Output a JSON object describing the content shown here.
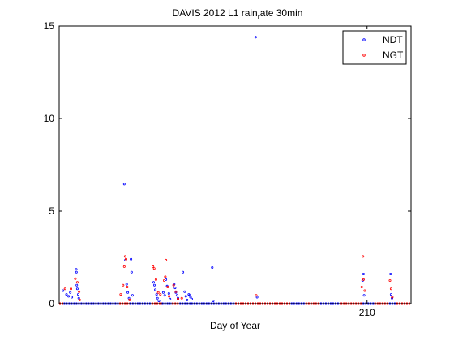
{
  "chart_data": {
    "type": "scatter",
    "title_main": "DAVIS 2012 L1 rain",
    "title_sub": "r",
    "title_rest": "ate 30min",
    "xlabel": "Day of Year",
    "ylabel": "",
    "xlim": [
      199.5,
      211.5
    ],
    "ylim": [
      0,
      15
    ],
    "xticks": [
      210
    ],
    "xtick_labels": [
      "210"
    ],
    "yticks": [
      0,
      5,
      10,
      15
    ],
    "ytick_labels": [
      "0",
      "5",
      "10",
      "15"
    ],
    "grid": false,
    "legend_position": "top-right",
    "series": [
      {
        "name": "NDT",
        "color": "#0000ff",
        "points": [
          [
            199.63,
            0.7
          ],
          [
            199.75,
            0.5
          ],
          [
            199.82,
            0.4
          ],
          [
            199.88,
            0.6
          ],
          [
            199.93,
            0.35
          ],
          [
            200.08,
            1.85
          ],
          [
            200.09,
            1.7
          ],
          [
            200.1,
            1.0
          ],
          [
            200.12,
            0.8
          ],
          [
            200.15,
            0.5
          ],
          [
            200.17,
            0.3
          ],
          [
            201.72,
            6.45
          ],
          [
            201.76,
            2.35
          ],
          [
            201.8,
            1.05
          ],
          [
            201.84,
            0.6
          ],
          [
            201.88,
            0.3
          ],
          [
            201.95,
            2.4
          ],
          [
            201.97,
            1.7
          ],
          [
            202.0,
            0.45
          ],
          [
            202.72,
            1.15
          ],
          [
            202.75,
            1.0
          ],
          [
            202.78,
            0.75
          ],
          [
            202.82,
            0.5
          ],
          [
            202.85,
            0.3
          ],
          [
            202.9,
            0.15
          ],
          [
            203.05,
            0.6
          ],
          [
            203.1,
            0.45
          ],
          [
            203.14,
            1.3
          ],
          [
            203.18,
            0.95
          ],
          [
            203.24,
            0.55
          ],
          [
            203.28,
            0.25
          ],
          [
            203.42,
            1.05
          ],
          [
            203.45,
            0.85
          ],
          [
            203.48,
            0.6
          ],
          [
            203.52,
            0.45
          ],
          [
            203.55,
            0.3
          ],
          [
            203.72,
            1.7
          ],
          [
            203.78,
            0.65
          ],
          [
            203.82,
            0.4
          ],
          [
            203.86,
            0.2
          ],
          [
            203.92,
            0.5
          ],
          [
            203.95,
            0.45
          ],
          [
            203.98,
            0.35
          ],
          [
            204.02,
            0.25
          ],
          [
            204.72,
            1.95
          ],
          [
            204.75,
            0.15
          ],
          [
            206.2,
            14.4
          ],
          [
            206.25,
            0.35
          ],
          [
            209.85,
            1.25
          ],
          [
            209.88,
            1.6
          ],
          [
            209.9,
            0.45
          ],
          [
            210.8,
            1.6
          ],
          [
            210.82,
            0.5
          ],
          [
            210.85,
            0.3
          ]
        ]
      },
      {
        "name": "NGT",
        "color": "#ff0000",
        "points": [
          [
            199.7,
            0.8
          ],
          [
            199.9,
            0.8
          ],
          [
            200.05,
            1.35
          ],
          [
            200.12,
            1.15
          ],
          [
            200.18,
            0.65
          ],
          [
            200.2,
            0.2
          ],
          [
            201.6,
            0.5
          ],
          [
            201.68,
            1.0
          ],
          [
            201.72,
            2.0
          ],
          [
            201.75,
            2.55
          ],
          [
            201.78,
            2.4
          ],
          [
            201.82,
            0.9
          ],
          [
            201.9,
            0.2
          ],
          [
            202.7,
            2.0
          ],
          [
            202.74,
            1.9
          ],
          [
            202.8,
            1.3
          ],
          [
            202.88,
            0.6
          ],
          [
            202.95,
            0.5
          ],
          [
            203.08,
            1.25
          ],
          [
            203.12,
            1.45
          ],
          [
            203.14,
            2.35
          ],
          [
            203.2,
            0.9
          ],
          [
            203.25,
            0.4
          ],
          [
            203.4,
            1.0
          ],
          [
            203.48,
            0.65
          ],
          [
            203.55,
            0.25
          ],
          [
            203.68,
            0.3
          ],
          [
            206.22,
            0.45
          ],
          [
            209.82,
            0.9
          ],
          [
            209.86,
            2.55
          ],
          [
            209.88,
            1.3
          ],
          [
            209.92,
            0.7
          ],
          [
            210.78,
            1.25
          ],
          [
            210.82,
            0.8
          ],
          [
            210.86,
            0.35
          ]
        ]
      }
    ]
  }
}
